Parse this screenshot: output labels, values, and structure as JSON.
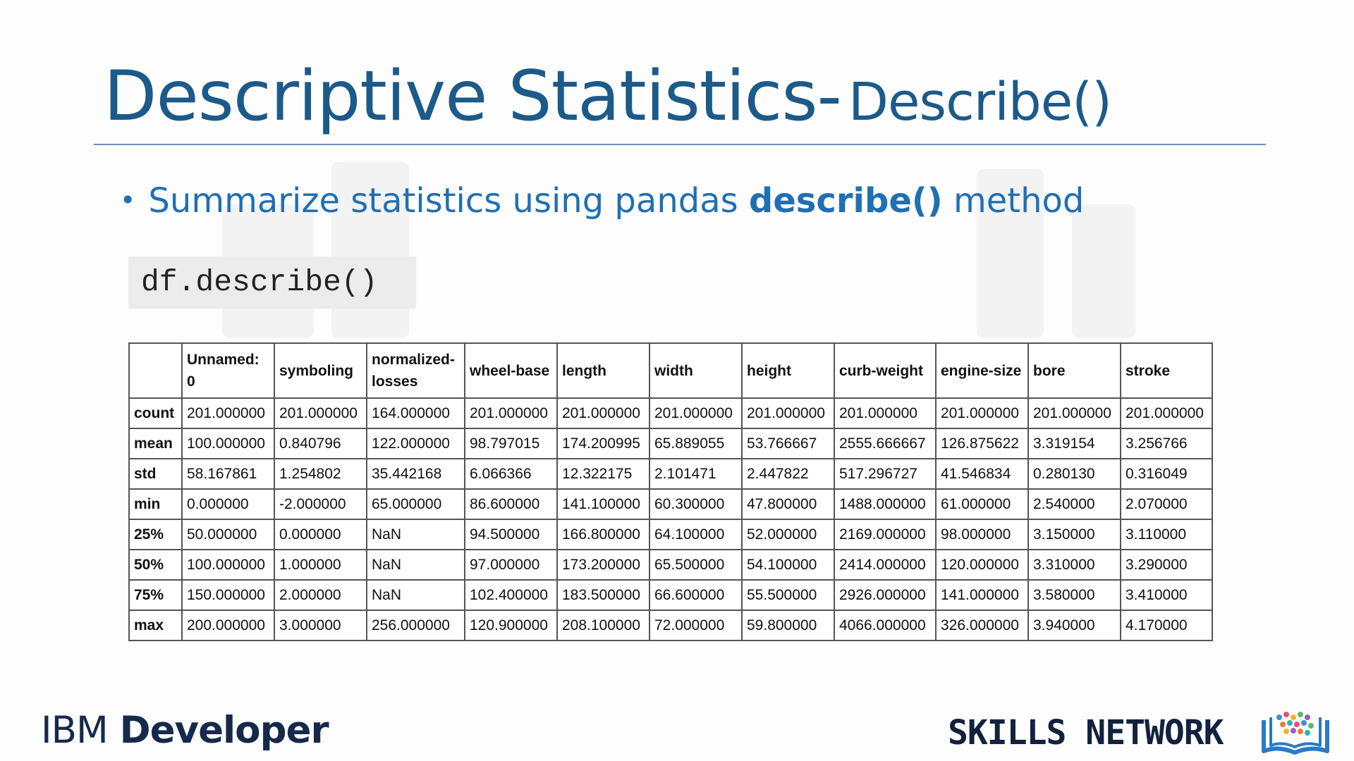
{
  "slide": {
    "title_main": "Descriptive Statistics-",
    "title_sub": "Describe()"
  },
  "bullet": {
    "prefix": "Summarize statistics using pandas ",
    "bold": "describe()",
    "suffix": " method"
  },
  "code": "df.describe()",
  "table": {
    "columns": [
      "",
      "Unnamed: 0",
      "symboling",
      "normalized-losses",
      "wheel-base",
      "length",
      "width",
      "height",
      "curb-weight",
      "engine-size",
      "bore",
      "stroke"
    ],
    "rows": [
      {
        "label": "count",
        "values": [
          "201.000000",
          "201.000000",
          "164.000000",
          "201.000000",
          "201.000000",
          "201.000000",
          "201.000000",
          "201.000000",
          "201.000000",
          "201.000000",
          "201.000000"
        ]
      },
      {
        "label": "mean",
        "values": [
          "100.000000",
          "0.840796",
          "122.000000",
          "98.797015",
          "174.200995",
          "65.889055",
          "53.766667",
          "2555.666667",
          "126.875622",
          "3.319154",
          "3.256766"
        ]
      },
      {
        "label": "std",
        "values": [
          "58.167861",
          "1.254802",
          "35.442168",
          "6.066366",
          "12.322175",
          "2.101471",
          "2.447822",
          "517.296727",
          "41.546834",
          "0.280130",
          "0.316049"
        ]
      },
      {
        "label": "min",
        "values": [
          "0.000000",
          "-2.000000",
          "65.000000",
          "86.600000",
          "141.100000",
          "60.300000",
          "47.800000",
          "1488.000000",
          "61.000000",
          "2.540000",
          "2.070000"
        ]
      },
      {
        "label": "25%",
        "values": [
          "50.000000",
          "0.000000",
          "NaN",
          "94.500000",
          "166.800000",
          "64.100000",
          "52.000000",
          "2169.000000",
          "98.000000",
          "3.150000",
          "3.110000"
        ]
      },
      {
        "label": "50%",
        "values": [
          "100.000000",
          "1.000000",
          "NaN",
          "97.000000",
          "173.200000",
          "65.500000",
          "54.100000",
          "2414.000000",
          "120.000000",
          "3.310000",
          "3.290000"
        ]
      },
      {
        "label": "75%",
        "values": [
          "150.000000",
          "2.000000",
          "NaN",
          "102.400000",
          "183.500000",
          "66.600000",
          "55.500000",
          "2926.000000",
          "141.000000",
          "3.580000",
          "3.410000"
        ]
      },
      {
        "label": "max",
        "values": [
          "200.000000",
          "3.000000",
          "256.000000",
          "120.900000",
          "208.100000",
          "72.000000",
          "59.800000",
          "4066.000000",
          "326.000000",
          "3.940000",
          "4.170000"
        ]
      }
    ]
  },
  "footer": {
    "ibm_word": "IBM",
    "developer_word": "Developer",
    "skills_network": "SKILLS NETWORK"
  },
  "colors": {
    "title": "#1c5a8a",
    "bullet": "#1f6fb5",
    "rule": "#6f8fb5",
    "logo_dark": "#152a4a"
  },
  "icons": [
    "skills-network-book-icon"
  ]
}
